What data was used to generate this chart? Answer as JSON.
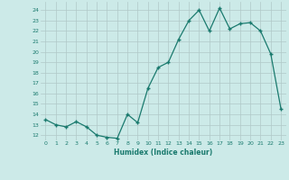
{
  "x": [
    0,
    1,
    2,
    3,
    4,
    5,
    6,
    7,
    8,
    9,
    10,
    11,
    12,
    13,
    14,
    15,
    16,
    17,
    18,
    19,
    20,
    21,
    22,
    23
  ],
  "y": [
    13.5,
    13.0,
    12.8,
    13.3,
    12.8,
    12.0,
    11.8,
    11.7,
    14.0,
    13.2,
    16.5,
    18.5,
    19.0,
    21.2,
    23.0,
    24.0,
    22.0,
    24.2,
    22.2,
    22.7,
    22.8,
    22.0,
    19.8,
    14.5
  ],
  "xlabel": "Humidex (Indice chaleur)",
  "xlim": [
    -0.5,
    23.5
  ],
  "ylim": [
    11.5,
    24.8
  ],
  "yticks": [
    12,
    13,
    14,
    15,
    16,
    17,
    18,
    19,
    20,
    21,
    22,
    23,
    24
  ],
  "xticks": [
    0,
    1,
    2,
    3,
    4,
    5,
    6,
    7,
    8,
    9,
    10,
    11,
    12,
    13,
    14,
    15,
    16,
    17,
    18,
    19,
    20,
    21,
    22,
    23
  ],
  "line_color": "#1a7a6e",
  "bg_color": "#cceae8",
  "grid_color": "#b0c8c8"
}
